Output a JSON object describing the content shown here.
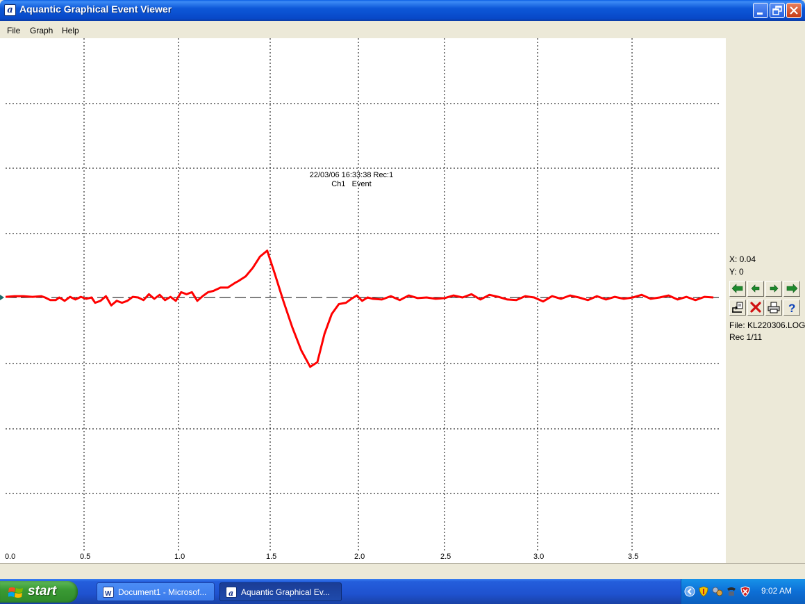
{
  "window": {
    "title": "Aquantic Graphical Event Viewer",
    "icon_letter": "a"
  },
  "menu": [
    "File",
    "Graph",
    "Help"
  ],
  "chart_data": {
    "type": "line",
    "title": "22/03/06 16:33:38 Rec:1",
    "subtitle": "Ch1   Event",
    "xlim": [
      0,
      4.0
    ],
    "xticks": [
      "0.0",
      "0.5",
      "1.0",
      "1.5",
      "2.0",
      "2.5",
      "3.0",
      "3.5"
    ],
    "grid": true,
    "baseline_dashed": true,
    "line_color": "#FF0000",
    "series": [
      {
        "x": [
          0.0,
          0.05,
          0.1,
          0.15,
          0.2,
          0.22,
          0.25,
          0.28,
          0.3,
          0.33,
          0.36,
          0.39,
          0.42,
          0.45,
          0.48,
          0.5,
          0.53,
          0.56,
          0.59,
          0.62,
          0.65,
          0.68,
          0.71,
          0.74,
          0.77,
          0.8,
          0.83,
          0.86,
          0.89,
          0.92,
          0.95,
          0.98,
          1.01,
          1.04,
          1.07,
          1.1,
          1.13,
          1.16,
          1.2,
          1.24,
          1.28,
          1.3,
          1.34,
          1.38,
          1.42,
          1.46,
          1.5,
          1.55,
          1.6,
          1.65,
          1.7,
          1.74,
          1.78,
          1.82,
          1.86,
          1.9,
          1.93,
          1.96,
          1.99,
          2.02,
          2.05,
          2.1,
          2.15,
          2.2,
          2.25,
          2.3,
          2.35,
          2.4,
          2.45,
          2.5,
          2.55,
          2.6,
          2.65,
          2.7,
          2.75,
          2.8,
          2.85,
          2.9,
          2.95,
          3.0,
          3.05,
          3.1,
          3.15,
          3.2,
          3.25,
          3.3,
          3.35,
          3.4,
          3.45,
          3.5,
          3.55,
          3.6,
          3.65,
          3.7,
          3.75,
          3.8,
          3.85,
          3.9,
          3.95
        ],
        "y": [
          0.01,
          0.02,
          0.02,
          0.01,
          0.02,
          0.0,
          -0.04,
          -0.04,
          0.0,
          -0.05,
          0.01,
          -0.03,
          0.01,
          -0.02,
          0.0,
          -0.08,
          -0.05,
          0.02,
          -0.12,
          -0.05,
          -0.08,
          -0.05,
          0.01,
          0.0,
          -0.04,
          0.05,
          -0.02,
          0.04,
          -0.04,
          0.01,
          -0.05,
          0.08,
          0.05,
          0.08,
          -0.05,
          0.02,
          0.08,
          0.1,
          0.15,
          0.15,
          0.22,
          0.25,
          0.32,
          0.45,
          0.62,
          0.71,
          0.38,
          -0.05,
          -0.45,
          -0.8,
          -1.05,
          -0.98,
          -0.55,
          -0.25,
          -0.1,
          -0.08,
          -0.02,
          0.03,
          -0.05,
          0.0,
          -0.02,
          -0.03,
          0.02,
          -0.04,
          0.03,
          -0.01,
          0.0,
          -0.02,
          -0.01,
          0.03,
          0.0,
          0.05,
          -0.03,
          0.04,
          0.01,
          -0.03,
          -0.04,
          0.02,
          0.0,
          -0.06,
          0.02,
          -0.02,
          0.03,
          0.0,
          -0.04,
          0.02,
          -0.03,
          0.01,
          -0.02,
          0.0,
          0.04,
          -0.02,
          0.0,
          0.03,
          -0.03,
          0.01,
          -0.04,
          0.01,
          0.0
        ]
      }
    ]
  },
  "panel": {
    "x_readout": "X: 0.04",
    "y_readout": "Y: 0",
    "file": "File: KL220306.LOG",
    "rec": "Rec 1/11",
    "nav_buttons": [
      "first-record-icon",
      "previous-record-icon",
      "next-record-icon",
      "last-record-icon"
    ],
    "tool_buttons": [
      "export-icon",
      "delete-icon",
      "print-icon",
      "help-icon"
    ]
  },
  "taskbar": {
    "start": "start",
    "tasks": [
      {
        "label": "Document1 - Microsof...",
        "active": false
      },
      {
        "label": "Aquantic Graphical Ev...",
        "active": true
      }
    ],
    "clock": "9:02 AM"
  }
}
